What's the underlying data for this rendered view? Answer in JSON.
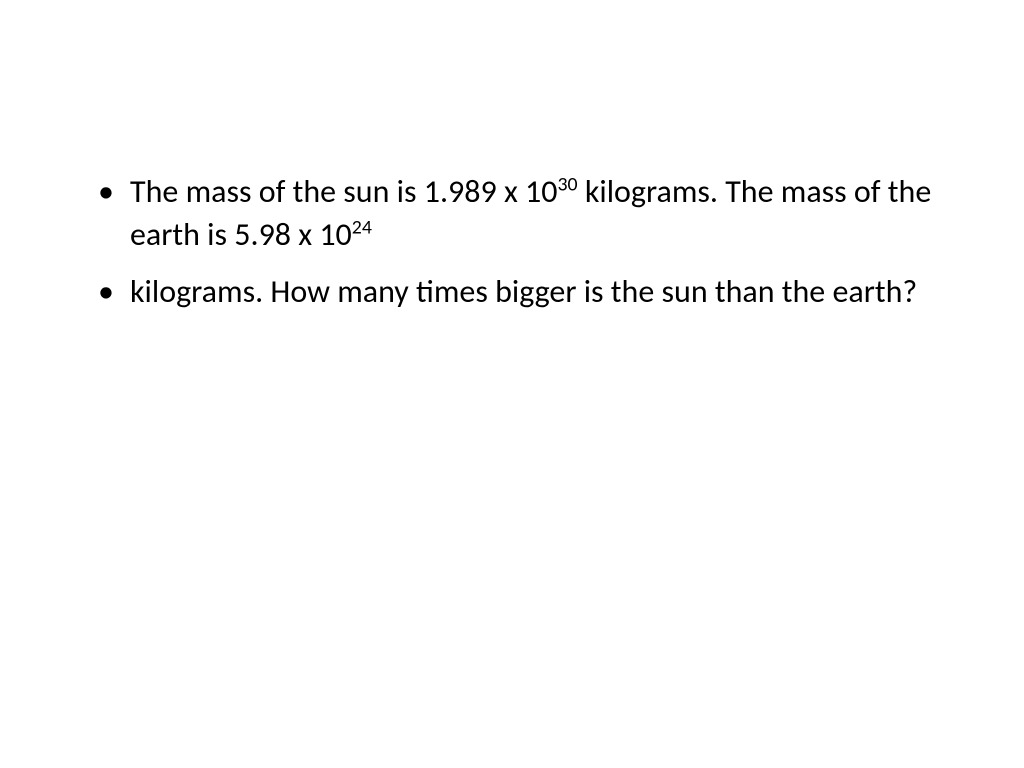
{
  "slide": {
    "background_color": "#ffffff",
    "text_color": "#000000",
    "font_family": "Calibri",
    "body_fontsize_pt": 24,
    "bullets": [
      {
        "pre1": "The mass of the sun is 1.989 x 10",
        "sup1": "30",
        "mid": " kilograms. The mass of the earth is 5.98 x 10",
        "sup2": "24",
        "post": ""
      },
      {
        "text": " kilograms. How many times bigger is the sun than the earth?"
      }
    ]
  }
}
